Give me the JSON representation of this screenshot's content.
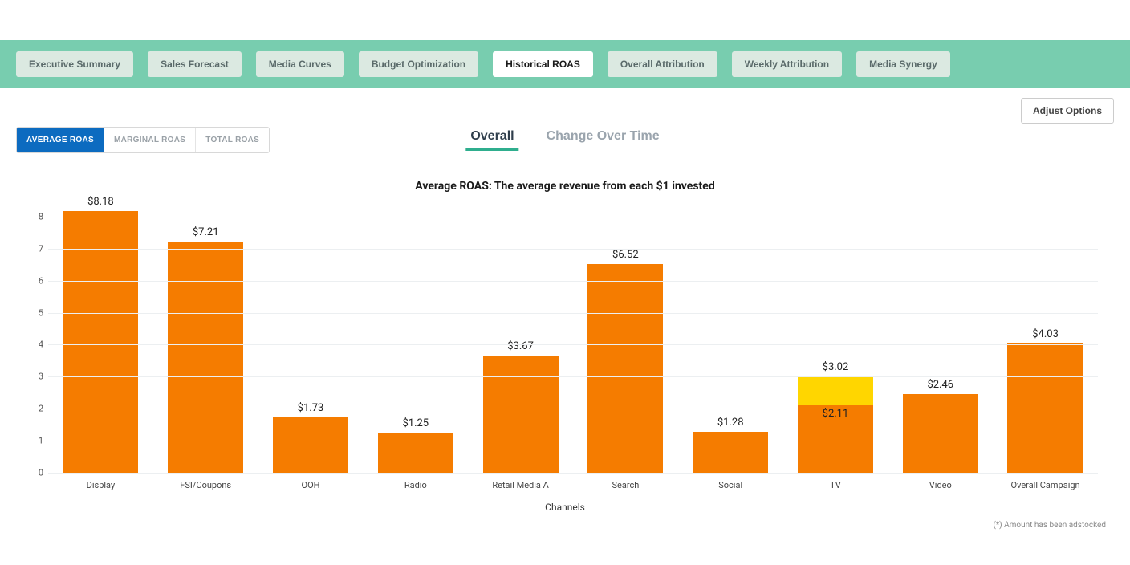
{
  "nav": {
    "items": [
      {
        "label": "Executive Summary",
        "active": false
      },
      {
        "label": "Sales Forecast",
        "active": false
      },
      {
        "label": "Media Curves",
        "active": false
      },
      {
        "label": "Budget Optimization",
        "active": false
      },
      {
        "label": "Historical ROAS",
        "active": true
      },
      {
        "label": "Overall Attribution",
        "active": false
      },
      {
        "label": "Weekly Attribution",
        "active": false
      },
      {
        "label": "Media Synergy",
        "active": false
      }
    ],
    "bg_color": "#78cdaf",
    "btn_bg": "#dbe9e1",
    "btn_active_bg": "#ffffff"
  },
  "adjust_options_label": "Adjust Options",
  "roas_tabs": [
    {
      "label": "AVERAGE ROAS",
      "active": true
    },
    {
      "label": "MARGINAL ROAS",
      "active": false
    },
    {
      "label": "TOTAL ROAS",
      "active": false
    }
  ],
  "roas_tab_active_bg": "#0c6bc0",
  "view_tabs": [
    {
      "label": "Overall",
      "active": true
    },
    {
      "label": "Change Over Time",
      "active": false
    }
  ],
  "view_tab_underline": "#2fae8e",
  "chart": {
    "type": "bar",
    "title": "Average ROAS: The average revenue from each $1 invested",
    "xaxis_title": "Channels",
    "categories": [
      "Display",
      "FSI/Coupons",
      "OOH",
      "Radio",
      "Retail Media A",
      "Search",
      "Social",
      "TV",
      "Video",
      "Overall Campaign"
    ],
    "series": [
      {
        "name": "Display",
        "value": 8.18,
        "label": "$8.18",
        "segments": [
          {
            "v": 8.18,
            "color": "#f57c00"
          }
        ]
      },
      {
        "name": "FSI/Coupons",
        "value": 7.21,
        "label": "$7.21",
        "segments": [
          {
            "v": 7.21,
            "color": "#f57c00"
          }
        ]
      },
      {
        "name": "OOH",
        "value": 1.73,
        "label": "$1.73",
        "segments": [
          {
            "v": 1.73,
            "color": "#f57c00"
          }
        ]
      },
      {
        "name": "Radio",
        "value": 1.25,
        "label": "$1.25",
        "segments": [
          {
            "v": 1.25,
            "color": "#f57c00"
          }
        ]
      },
      {
        "name": "Retail Media A",
        "value": 3.67,
        "label": "$3.67",
        "segments": [
          {
            "v": 3.67,
            "color": "#f57c00"
          }
        ]
      },
      {
        "name": "Search",
        "value": 6.52,
        "label": "$6.52",
        "segments": [
          {
            "v": 6.52,
            "color": "#f57c00"
          }
        ]
      },
      {
        "name": "Social",
        "value": 1.28,
        "label": "$1.28",
        "segments": [
          {
            "v": 1.28,
            "color": "#f57c00"
          }
        ]
      },
      {
        "name": "TV",
        "value": 3.02,
        "label": "$3.02",
        "inner_label": "$2.11",
        "inner_at": 2.11,
        "segments": [
          {
            "v": 2.11,
            "color": "#f57c00"
          },
          {
            "v": 0.91,
            "color": "#ffd600"
          }
        ]
      },
      {
        "name": "Video",
        "value": 2.46,
        "label": "$2.46",
        "segments": [
          {
            "v": 2.46,
            "color": "#f57c00"
          }
        ]
      },
      {
        "name": "Overall Campaign",
        "value": 4.03,
        "label": "$4.03",
        "segments": [
          {
            "v": 4.03,
            "color": "#f57c00"
          }
        ]
      }
    ],
    "y": {
      "min": 0,
      "max": 8.5,
      "ticks": [
        0,
        1,
        2,
        3,
        4,
        5,
        6,
        7,
        8
      ]
    },
    "grid_color": "#eceff1",
    "axis_color": "#bbbbbb",
    "bar_width_pct": 72,
    "title_fontsize": 14,
    "label_fontsize": 13,
    "tick_fontsize": 11
  },
  "footnote": "(*) Amount has been adstocked"
}
